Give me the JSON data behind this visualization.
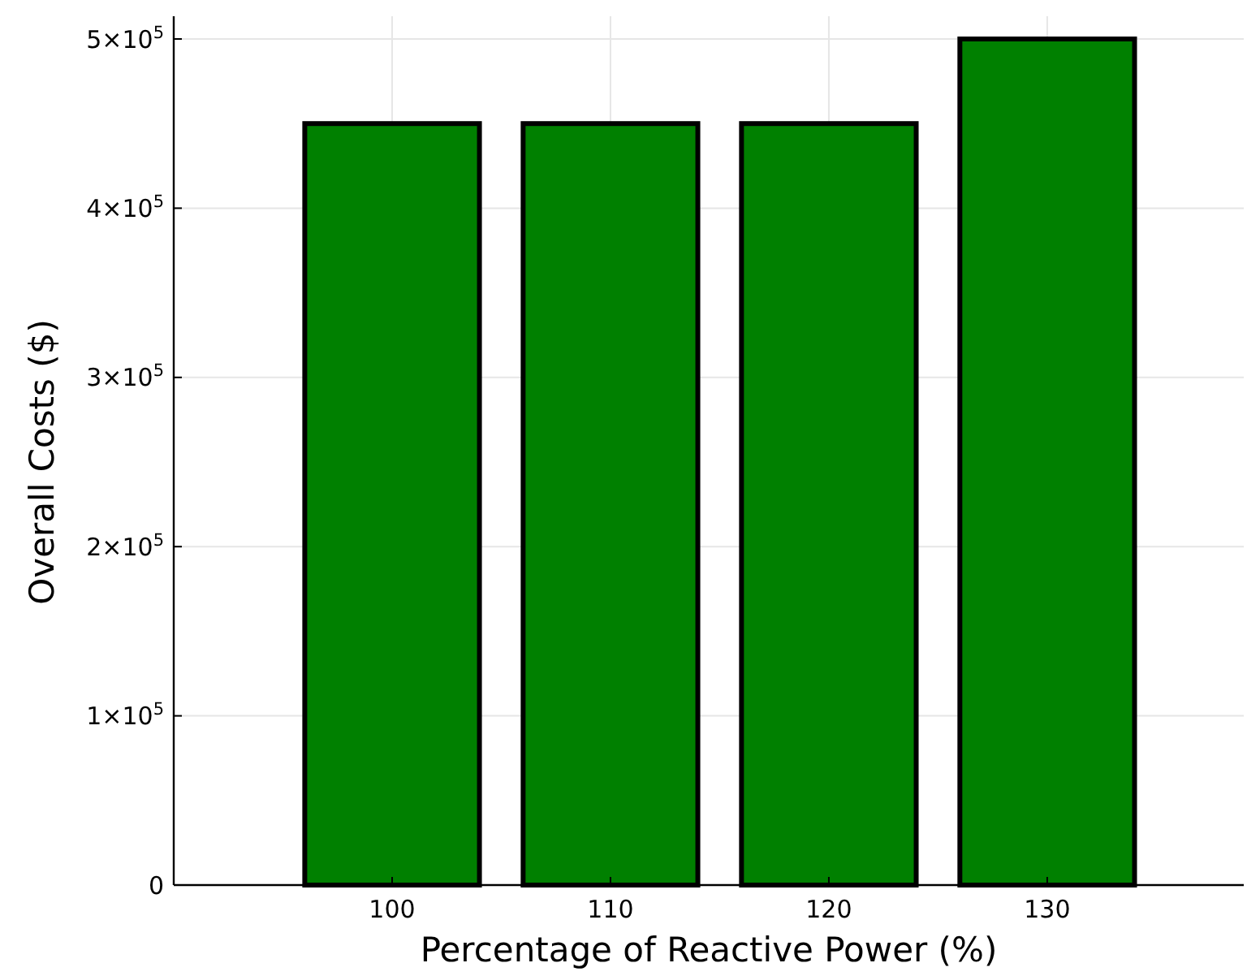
{
  "chart_data": {
    "type": "bar",
    "xlabel": "Percentage of Reactive Power  (%)",
    "ylabel": "Overall Costs ($)",
    "categories": [
      "100",
      "110",
      "120",
      "130"
    ],
    "values": [
      450000,
      450000,
      450000,
      500000
    ],
    "color": "#008000",
    "ylim": [
      0,
      500000
    ],
    "yticks": [
      0,
      {
        "value": 100000,
        "label": "1×10$^{5}$"
      },
      {
        "value": 200000,
        "label": "2×10$^{5}$"
      },
      {
        "value": 300000,
        "label": "3×10$^{5}$"
      },
      {
        "value": 400000,
        "label": "4×10$^{5}$"
      },
      {
        "value": 500000,
        "label": "5×10$^{5}$"
      }
    ],
    "grid": true
  }
}
